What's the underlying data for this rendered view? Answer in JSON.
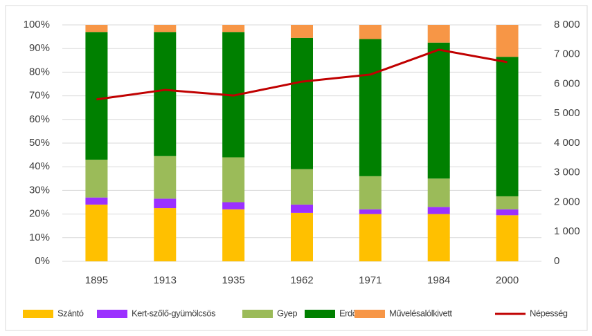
{
  "chart_data": {
    "type": "stacked-bar-line",
    "categories": [
      "1895",
      "1913",
      "1935",
      "1962",
      "1971",
      "1984",
      "2000"
    ],
    "series": [
      {
        "name": "Szántó",
        "color": "#ffc000",
        "values": [
          24,
          22.5,
          22,
          20.5,
          20,
          20,
          19.5
        ]
      },
      {
        "name": "Kert-szőlő-gyümölcsös",
        "color": "#9b30ff",
        "values": [
          3,
          4,
          3,
          3.5,
          2,
          3,
          2.5
        ]
      },
      {
        "name": "Gyep",
        "color": "#9bbb59",
        "values": [
          16,
          18,
          19,
          15,
          14,
          12,
          5.5
        ]
      },
      {
        "name": "Erdő",
        "color": "#008000",
        "values": [
          54,
          52.5,
          53,
          55.5,
          58,
          57.5,
          59
        ]
      },
      {
        "name": "Művelésalólkivett",
        "color": "#f79646",
        "values": [
          3,
          3,
          3,
          5.5,
          6,
          7.5,
          13.5
        ]
      },
      {
        "name": "Népesség",
        "color": "#c00000",
        "axis": "y2",
        "values": [
          5480,
          5800,
          5610,
          6080,
          6320,
          7160,
          6740
        ]
      }
    ],
    "ylim": [
      0,
      100
    ],
    "yticks": [
      {
        "value": 0,
        "label": "0%"
      },
      {
        "value": 10,
        "label": "10%"
      },
      {
        "value": 20,
        "label": "20%"
      },
      {
        "value": 30,
        "label": "30%"
      },
      {
        "value": 40,
        "label": "40%"
      },
      {
        "value": 50,
        "label": "50%"
      },
      {
        "value": 60,
        "label": "60%"
      },
      {
        "value": 70,
        "label": "70%"
      },
      {
        "value": 80,
        "label": "80%"
      },
      {
        "value": 90,
        "label": "90%"
      },
      {
        "value": 100,
        "label": "100%"
      }
    ],
    "y2lim": [
      0,
      8000
    ],
    "y2ticks": [
      0,
      {
        "value": 1000,
        "label": "1 000"
      },
      {
        "value": 2000,
        "label": "2 000"
      },
      {
        "value": 3000,
        "label": "3 000"
      },
      {
        "value": 4000,
        "label": "4 000"
      },
      {
        "value": 5000,
        "label": "5 000"
      },
      {
        "value": 6000,
        "label": "6 000"
      },
      {
        "value": 7000,
        "label": "7 000"
      },
      {
        "value": 8000,
        "label": "8 000"
      }
    ],
    "legend": "bottom"
  }
}
